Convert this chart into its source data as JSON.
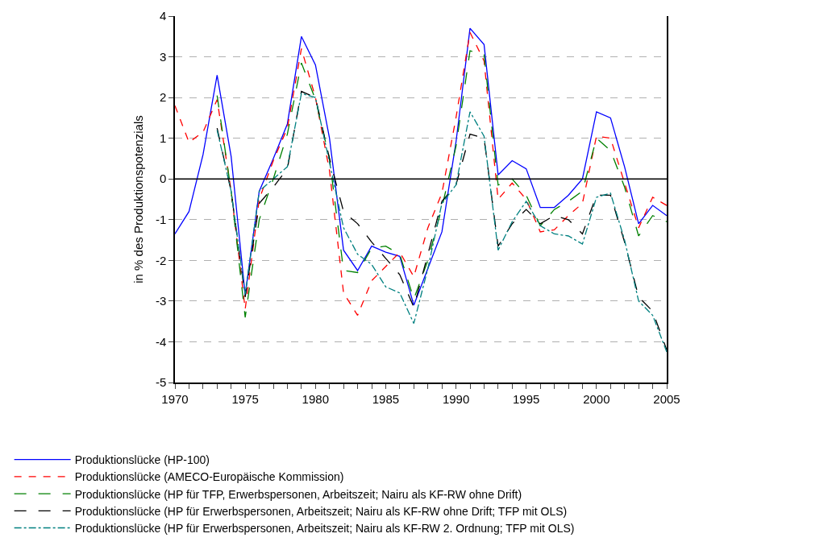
{
  "chart_data": {
    "type": "line",
    "ylabel": "in % des Produktionspotenzials",
    "x": [
      1970,
      1971,
      1972,
      1973,
      1974,
      1975,
      1976,
      1977,
      1978,
      1979,
      1980,
      1981,
      1982,
      1983,
      1984,
      1985,
      1986,
      1987,
      1988,
      1989,
      1990,
      1991,
      1992,
      1993,
      1994,
      1995,
      1996,
      1997,
      1998,
      1999,
      2000,
      2001,
      2002,
      2003,
      2004,
      2005
    ],
    "series": [
      {
        "name": "Produktionslücke (HP-100)",
        "color": "#0000ff",
        "line_style": "solid",
        "values": [
          -1.35,
          -0.8,
          0.6,
          2.55,
          0.55,
          -2.85,
          -0.3,
          0.5,
          1.35,
          3.5,
          2.8,
          1.0,
          -1.75,
          -2.25,
          -1.65,
          -1.8,
          -1.9,
          -3.1,
          -2.2,
          -1.3,
          0.9,
          3.7,
          3.3,
          0.1,
          0.45,
          0.25,
          -0.7,
          -0.7,
          -0.4,
          0.0,
          1.65,
          1.5,
          0.3,
          -1.1,
          -0.65,
          -0.9
        ]
      },
      {
        "name": "Produktionslücke (AMECO-Europäische Kommission)",
        "color": "#ff0000",
        "line_style": "dashed",
        "values": [
          1.8,
          0.9,
          1.15,
          1.95,
          -0.3,
          -3.2,
          -0.5,
          0.45,
          1.25,
          3.2,
          2.0,
          0.2,
          -2.8,
          -3.35,
          -2.5,
          -2.15,
          -1.8,
          -2.4,
          -1.2,
          -0.35,
          1.5,
          3.6,
          2.9,
          -0.5,
          -0.1,
          -0.5,
          -1.3,
          -1.25,
          -0.9,
          -0.6,
          1.05,
          1.0,
          -0.1,
          -1.2,
          -0.45,
          -0.65
        ]
      },
      {
        "name": "Produktionslücke (HP für TFP, Erwerbspersonen, Arbeitszeit; Nairu als KF-RW ohne Drift)",
        "color": "#008000",
        "line_style": "longdash",
        "values": [
          null,
          null,
          null,
          2.05,
          -0.3,
          -3.4,
          -1.0,
          0.0,
          1.1,
          2.85,
          1.95,
          0.5,
          -2.25,
          -2.3,
          -1.7,
          -1.65,
          -1.85,
          -2.95,
          -2.0,
          -0.7,
          0.8,
          3.15,
          3.05,
          -0.15,
          0.0,
          -0.4,
          -1.15,
          -0.75,
          -0.55,
          -0.3,
          1.0,
          0.7,
          -0.2,
          -1.4,
          -0.9,
          -1.05
        ]
      },
      {
        "name": "Produktionslücke (HP für Erwerbspersonen, Arbeitszeit; Nairu als KF-RW ohne Drift; TFP mit OLS)",
        "color": "#000000",
        "line_style": "longdash",
        "values": [
          null,
          null,
          null,
          1.25,
          -0.3,
          -2.9,
          -0.6,
          -0.2,
          0.25,
          2.15,
          2.0,
          0.5,
          -0.8,
          -1.1,
          -1.55,
          -1.95,
          -2.35,
          -3.15,
          -1.85,
          -0.55,
          -0.15,
          1.1,
          1.0,
          -1.65,
          -1.1,
          -0.75,
          -1.1,
          -0.9,
          -1.0,
          -1.35,
          -0.4,
          -0.4,
          -1.55,
          -2.9,
          -3.25,
          -4.2
        ]
      },
      {
        "name": "Produktionslücke (HP für Erwerbspersonen, Arbeitszeit; Nairu als KF-RW 2. Ordnung; TFP mit OLS)",
        "color": "#008080",
        "line_style": "dashdot",
        "values": [
          null,
          null,
          null,
          1.2,
          -0.3,
          -2.85,
          -0.3,
          0.0,
          0.3,
          2.1,
          2.0,
          0.4,
          -1.2,
          -1.85,
          -2.1,
          -2.65,
          -2.8,
          -3.55,
          -2.2,
          -0.6,
          -0.15,
          1.65,
          1.05,
          -1.75,
          -1.05,
          -0.55,
          -1.15,
          -1.35,
          -1.4,
          -1.6,
          -0.45,
          -0.35,
          -1.5,
          -3.0,
          -3.35,
          -4.25
        ]
      }
    ],
    "xlim": [
      1970,
      2005
    ],
    "xticks": [
      1970,
      {
        "value": 1971,
        "label": null
      },
      {
        "value": 1972,
        "label": null
      },
      {
        "value": 1973,
        "label": null
      },
      {
        "value": 1974,
        "label": null
      },
      1975,
      {
        "value": 1976,
        "label": null
      },
      {
        "value": 1977,
        "label": null
      },
      {
        "value": 1978,
        "label": null
      },
      {
        "value": 1979,
        "label": null
      },
      1980,
      {
        "value": 1981,
        "label": null
      },
      {
        "value": 1982,
        "label": null
      },
      {
        "value": 1983,
        "label": null
      },
      {
        "value": 1984,
        "label": null
      },
      1985,
      {
        "value": 1986,
        "label": null
      },
      {
        "value": 1987,
        "label": null
      },
      {
        "value": 1988,
        "label": null
      },
      {
        "value": 1989,
        "label": null
      },
      1990,
      {
        "value": 1991,
        "label": null
      },
      {
        "value": 1992,
        "label": null
      },
      {
        "value": 1993,
        "label": null
      },
      {
        "value": 1994,
        "label": null
      },
      1995,
      {
        "value": 1996,
        "label": null
      },
      {
        "value": 1997,
        "label": null
      },
      {
        "value": 1998,
        "label": null
      },
      {
        "value": 1999,
        "label": null
      },
      2000,
      {
        "value": 2001,
        "label": null
      },
      {
        "value": 2002,
        "label": null
      },
      {
        "value": 2003,
        "label": null
      },
      {
        "value": 2004,
        "label": null
      },
      2005
    ],
    "ylim": [
      -5,
      4
    ],
    "yticks": [
      -5,
      -4,
      -3,
      -2,
      -1,
      0,
      1,
      2,
      3,
      4
    ],
    "grid": "y",
    "ref_lines": [
      {
        "axis": "y",
        "value": 0,
        "color": "#000000",
        "line_style": "solid"
      }
    ],
    "legend": "bottom",
    "marker": "none"
  }
}
